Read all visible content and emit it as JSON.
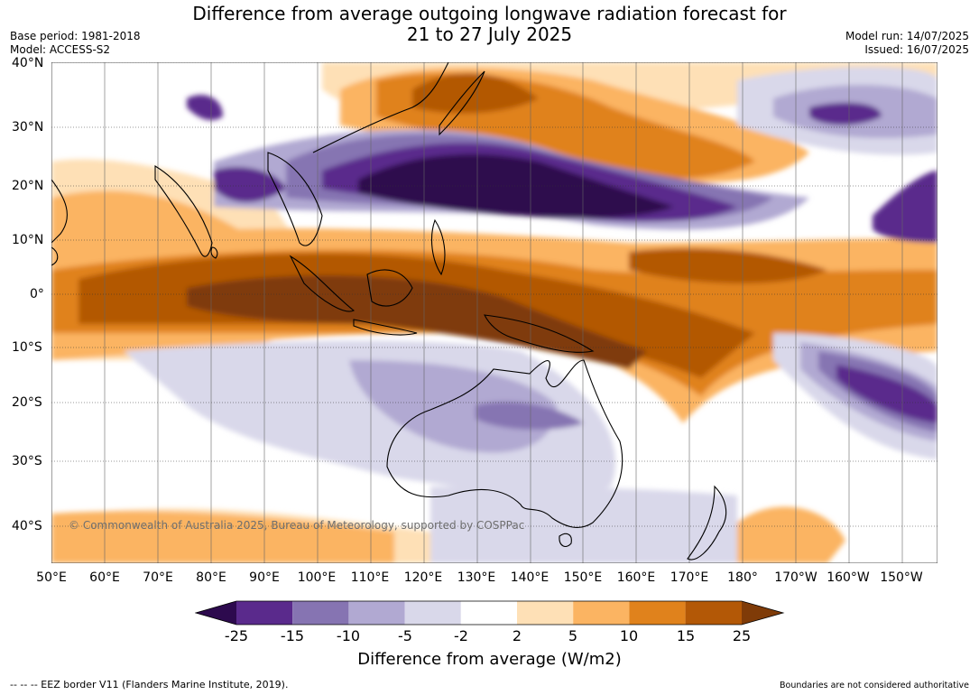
{
  "title": {
    "line1": "Difference from average outgoing longwave radiation forecast for",
    "line2": "21 to 27 July 2025"
  },
  "meta": {
    "base_period": "Base period: 1981-2018",
    "model": "Model: ACCESS-S2",
    "model_run": "Model run: 14/07/2025",
    "issued": "Issued: 16/07/2025"
  },
  "map": {
    "lat_labels": [
      "40°N",
      "30°N",
      "20°N",
      "10°N",
      "0°",
      "10°S",
      "20°S",
      "30°S",
      "40°S"
    ],
    "lon_labels": [
      "50°E",
      "60°E",
      "70°E",
      "80°E",
      "90°E",
      "100°E",
      "110°E",
      "120°E",
      "130°E",
      "140°E",
      "150°E",
      "160°E",
      "170°E",
      "180°",
      "170°W",
      "160°W",
      "150°W"
    ],
    "copyright": "© Commonwealth of Australia 2025, Bureau of Meteorology, supported by COSPPac"
  },
  "legend": {
    "ticks": [
      "-25",
      "-15",
      "-10",
      "-5",
      "-2",
      "2",
      "5",
      "10",
      "15",
      "25"
    ],
    "colors": [
      "#2d0a4e",
      "#5a2a8c",
      "#8674b2",
      "#b1a9d2",
      "#d9d8ea",
      "#ffffff",
      "#fee0b6",
      "#fbb462",
      "#e0821c",
      "#b35806",
      "#7f3b08"
    ],
    "label": "Difference from average (W/m2)"
  },
  "footer": {
    "eez": "-- -- -- EEZ border V11 (Flanders Marine Institute, 2019).",
    "disclaimer": "Boundaries are not considered authoritative"
  }
}
